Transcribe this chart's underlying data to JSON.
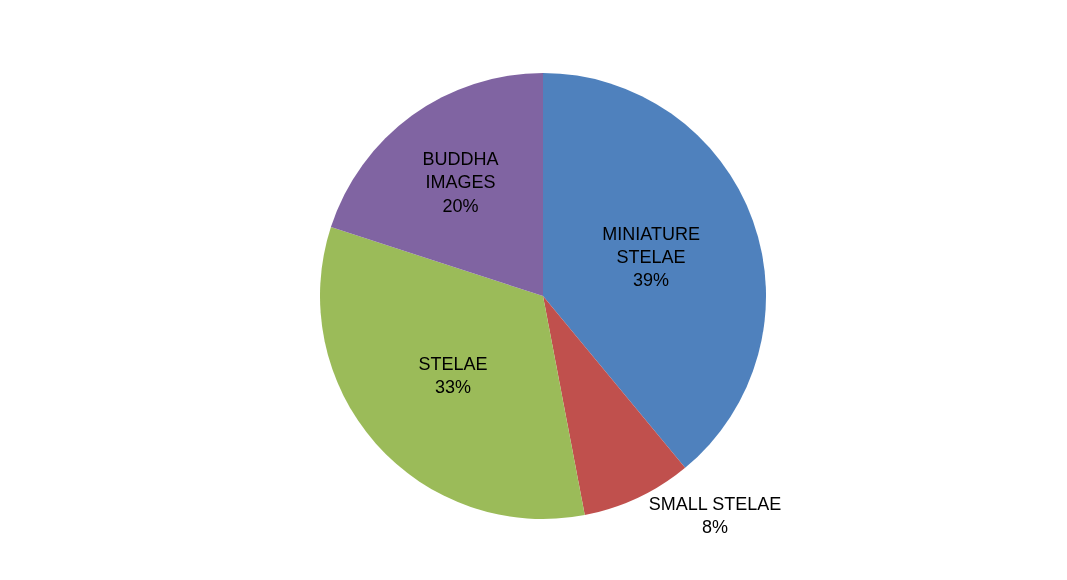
{
  "chart_data": {
    "type": "pie",
    "categories": [
      "MINIATURE STELAE",
      "SMALL STELAE",
      "STELAE",
      "BUDDHA IMAGES"
    ],
    "values": [
      39,
      8,
      33,
      20
    ],
    "colors": [
      "#4f81bd",
      "#c0504d",
      "#9bbb59",
      "#8064a2"
    ],
    "value_labels": [
      "39%",
      "8%",
      "33%",
      "20%"
    ],
    "legend": false
  }
}
